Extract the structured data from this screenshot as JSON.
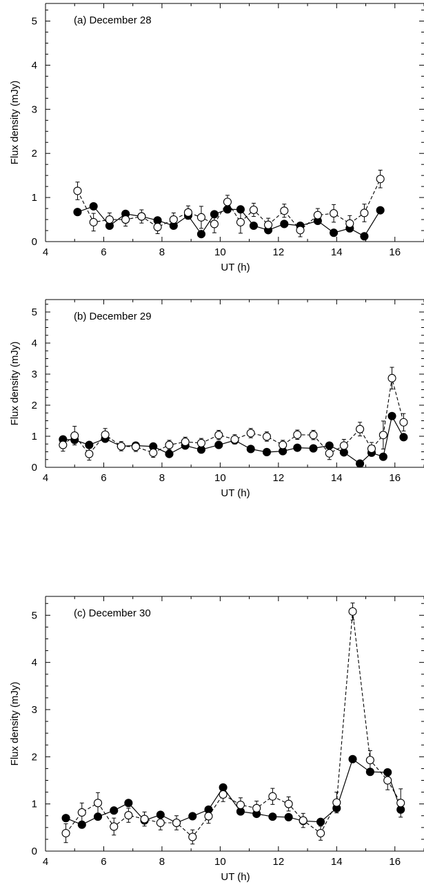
{
  "chart_data": [
    {
      "type": "line",
      "title": "(a) December 28",
      "xlabel": "UT (h)",
      "ylabel": "Flux density (mJy)",
      "xlim": [
        4,
        17
      ],
      "ylim": [
        0,
        5.4
      ],
      "xticks": [
        4,
        6,
        8,
        10,
        12,
        14,
        16
      ],
      "yticks": [
        0,
        1,
        2,
        3,
        4,
        5
      ],
      "series": [
        {
          "marker": "filled-circle",
          "line": "solid",
          "x": [
            5.1,
            5.65,
            6.2,
            6.75,
            7.3,
            7.85,
            8.4,
            8.9,
            9.35,
            9.8,
            10.25,
            10.7,
            11.15,
            11.65,
            12.2,
            12.75,
            13.35,
            13.9,
            14.45,
            14.95,
            15.5
          ],
          "y": [
            0.67,
            0.8,
            0.36,
            0.63,
            0.57,
            0.48,
            0.36,
            0.59,
            0.17,
            0.62,
            0.73,
            0.73,
            0.36,
            0.26,
            0.4,
            0.36,
            0.47,
            0.2,
            0.3,
            0.12,
            0.71
          ]
        },
        {
          "marker": "open-circle",
          "line": "dashed",
          "x": [
            5.1,
            5.65,
            6.2,
            6.75,
            7.3,
            7.85,
            8.4,
            8.9,
            9.35,
            9.8,
            10.25,
            10.7,
            11.15,
            11.65,
            12.2,
            12.75,
            13.35,
            13.9,
            14.45,
            14.95,
            15.5
          ],
          "y": [
            1.15,
            0.44,
            0.5,
            0.5,
            0.57,
            0.33,
            0.5,
            0.66,
            0.55,
            0.4,
            0.9,
            0.44,
            0.72,
            0.38,
            0.7,
            0.26,
            0.6,
            0.64,
            0.41,
            0.65,
            1.42
          ],
          "err": [
            0.2,
            0.2,
            0.15,
            0.15,
            0.15,
            0.15,
            0.15,
            0.15,
            0.25,
            0.2,
            0.15,
            0.25,
            0.15,
            0.15,
            0.15,
            0.15,
            0.15,
            0.2,
            0.18,
            0.2,
            0.2
          ]
        }
      ]
    },
    {
      "type": "line",
      "title": "(b) December 29",
      "xlabel": "UT (h)",
      "ylabel": "Flux density (mJy)",
      "xlim": [
        4,
        17
      ],
      "ylim": [
        0,
        5.4
      ],
      "xticks": [
        4,
        6,
        8,
        10,
        12,
        14,
        16
      ],
      "yticks": [
        0,
        1,
        2,
        3,
        4,
        5
      ],
      "series": [
        {
          "marker": "filled-circle",
          "line": "solid",
          "x": [
            4.6,
            5.0,
            5.5,
            6.05,
            6.6,
            7.1,
            7.7,
            8.25,
            8.8,
            9.35,
            9.95,
            10.5,
            11.05,
            11.6,
            12.15,
            12.65,
            13.2,
            13.75,
            14.25,
            14.8,
            15.2,
            15.6,
            15.9,
            16.3
          ],
          "y": [
            0.9,
            0.88,
            0.72,
            0.92,
            0.68,
            0.7,
            0.67,
            0.43,
            0.7,
            0.57,
            0.72,
            0.87,
            0.59,
            0.49,
            0.52,
            0.63,
            0.61,
            0.7,
            0.48,
            0.12,
            0.47,
            0.34,
            1.65,
            0.97
          ]
        },
        {
          "marker": "open-circle",
          "line": "dashed",
          "x": [
            4.6,
            5.0,
            5.5,
            6.05,
            6.6,
            7.1,
            7.7,
            8.25,
            8.8,
            9.35,
            9.95,
            10.5,
            11.05,
            11.6,
            12.15,
            12.65,
            13.2,
            13.75,
            14.25,
            14.8,
            15.2,
            15.6,
            15.9,
            16.3
          ],
          "y": [
            0.72,
            1.02,
            0.43,
            1.05,
            0.68,
            0.66,
            0.47,
            0.72,
            0.82,
            0.78,
            1.04,
            0.9,
            1.1,
            0.99,
            0.72,
            1.05,
            1.04,
            0.45,
            0.7,
            1.23,
            0.6,
            1.04,
            2.87,
            1.45
          ],
          "err": [
            0.2,
            0.3,
            0.2,
            0.2,
            0.15,
            0.15,
            0.15,
            0.15,
            0.15,
            0.15,
            0.15,
            0.15,
            0.15,
            0.15,
            0.15,
            0.15,
            0.15,
            0.2,
            0.2,
            0.22,
            0.2,
            0.45,
            0.35,
            0.28
          ]
        }
      ]
    },
    {
      "type": "line",
      "title": "(c) December 30",
      "xlabel": "UT (h)",
      "ylabel": "Flux density (mJy)",
      "xlim": [
        4,
        17
      ],
      "ylim": [
        0,
        5.4
      ],
      "xticks": [
        4,
        6,
        8,
        10,
        12,
        14,
        16
      ],
      "yticks": [
        0,
        1,
        2,
        3,
        4,
        5
      ],
      "series": [
        {
          "marker": "filled-circle",
          "line": "solid",
          "x": [
            4.7,
            5.25,
            5.8,
            6.35,
            6.85,
            7.4,
            7.95,
            8.5,
            9.05,
            9.6,
            10.1,
            10.7,
            11.25,
            11.8,
            12.35,
            12.85,
            13.45,
            14.0,
            14.55,
            15.15,
            15.75,
            16.2
          ],
          "y": [
            0.7,
            0.56,
            0.73,
            0.86,
            1.02,
            0.65,
            0.77,
            0.6,
            0.74,
            0.88,
            1.35,
            0.84,
            0.79,
            0.73,
            0.72,
            0.64,
            0.62,
            0.91,
            1.95,
            1.68,
            1.67,
            0.88
          ]
        },
        {
          "marker": "open-circle",
          "line": "dashed",
          "x": [
            4.7,
            5.25,
            5.8,
            6.35,
            6.85,
            7.4,
            7.95,
            8.5,
            9.05,
            9.6,
            10.1,
            10.7,
            11.25,
            11.8,
            12.35,
            12.85,
            13.45,
            14.0,
            14.55,
            15.15,
            15.75,
            16.2
          ],
          "y": [
            0.38,
            0.82,
            1.02,
            0.52,
            0.76,
            0.68,
            0.6,
            0.6,
            0.3,
            0.74,
            1.2,
            0.98,
            0.91,
            1.16,
            1.0,
            0.65,
            0.38,
            1.03,
            5.08,
            1.93,
            1.5,
            1.02
          ],
          "err": [
            0.2,
            0.2,
            0.22,
            0.18,
            0.15,
            0.15,
            0.15,
            0.15,
            0.15,
            0.15,
            0.15,
            0.15,
            0.15,
            0.17,
            0.15,
            0.15,
            0.15,
            0.22,
            0.18,
            0.2,
            0.2,
            0.3
          ]
        }
      ]
    }
  ]
}
